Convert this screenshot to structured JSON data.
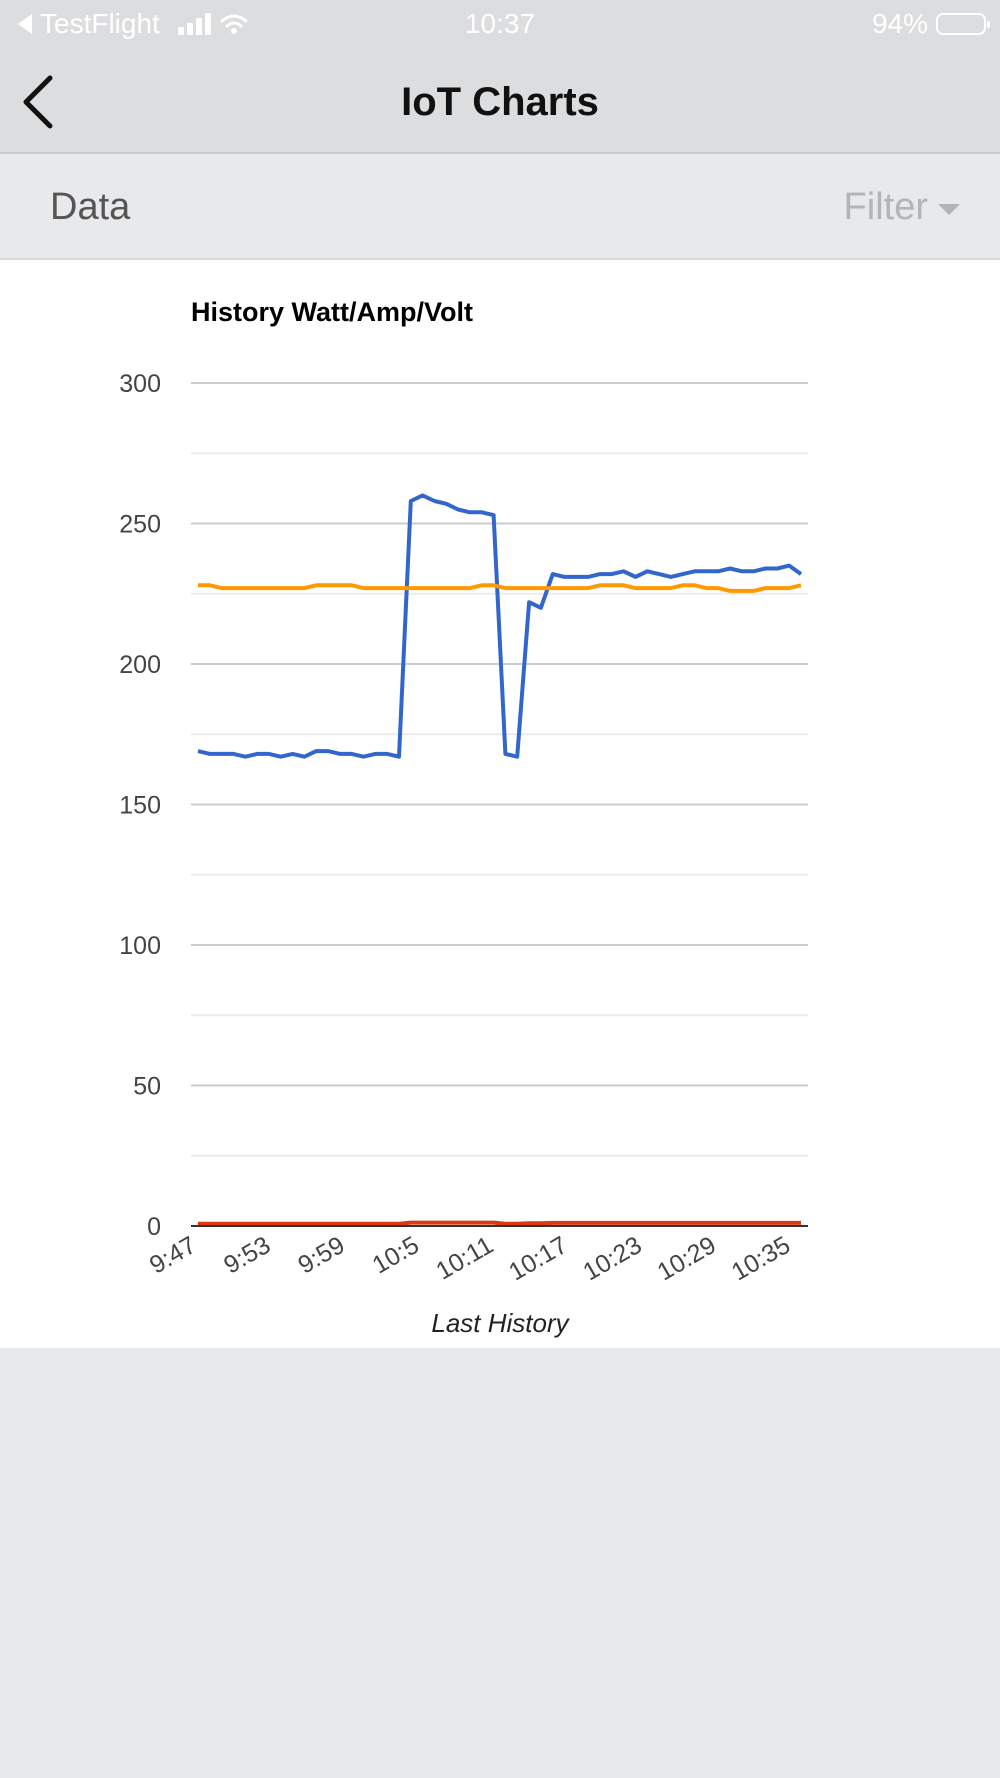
{
  "status_bar": {
    "app_back_label": "TestFlight",
    "time": "10:37",
    "battery_percent": "94%",
    "battery_level": 0.94
  },
  "nav": {
    "title": "IoT Charts",
    "back_icon": "chevron-left-icon"
  },
  "filter_bar": {
    "label": "Data",
    "filter_label": "Filter"
  },
  "colors": {
    "watt": "#3366cc",
    "volt": "#ff9900",
    "amp": "#dc3912"
  },
  "chart_data": {
    "type": "line",
    "title": "History Watt/Amp/Volt",
    "xlabel": "Last History",
    "ylabel": "",
    "ylim": [
      0,
      300
    ],
    "yticks": [
      0,
      50,
      100,
      150,
      200,
      250,
      300
    ],
    "grid": true,
    "legend": "none",
    "x_tick_labels": [
      "9:47",
      "9:53",
      "9:59",
      "10:5",
      "10:11",
      "10:17",
      "10:23",
      "10:29",
      "10:35"
    ],
    "series": [
      {
        "color": "#3366cc",
        "values": [
          169,
          168,
          168,
          168,
          167,
          168,
          168,
          167,
          168,
          167,
          169,
          169,
          168,
          168,
          167,
          168,
          168,
          167,
          258,
          260,
          258,
          257,
          255,
          254,
          254,
          253,
          168,
          167,
          222,
          220,
          232,
          231,
          231,
          231,
          232,
          232,
          233,
          231,
          233,
          232,
          231,
          232,
          233,
          233,
          233,
          234,
          233,
          233,
          234,
          234,
          235,
          232
        ]
      },
      {
        "color": "#ff9900",
        "values": [
          228,
          228,
          227,
          227,
          227,
          227,
          227,
          227,
          227,
          227,
          228,
          228,
          228,
          228,
          227,
          227,
          227,
          227,
          227,
          227,
          227,
          227,
          227,
          227,
          228,
          228,
          227,
          227,
          227,
          227,
          227,
          227,
          227,
          227,
          228,
          228,
          228,
          227,
          227,
          227,
          227,
          228,
          228,
          227,
          227,
          226,
          226,
          226,
          227,
          227,
          227,
          228
        ]
      },
      {
        "color": "#dc3912",
        "values": [
          0.8,
          0.8,
          0.8,
          0.8,
          0.8,
          0.8,
          0.8,
          0.8,
          0.8,
          0.8,
          0.8,
          0.8,
          0.8,
          0.8,
          0.8,
          0.8,
          0.8,
          0.8,
          1.2,
          1.2,
          1.2,
          1.2,
          1.2,
          1.2,
          1.2,
          1.2,
          0.8,
          0.8,
          1.0,
          1.0,
          1.1,
          1.1,
          1.1,
          1.1,
          1.1,
          1.1,
          1.1,
          1.1,
          1.1,
          1.1,
          1.1,
          1.1,
          1.1,
          1.1,
          1.1,
          1.1,
          1.1,
          1.1,
          1.1,
          1.1,
          1.1,
          1.1
        ]
      }
    ]
  }
}
